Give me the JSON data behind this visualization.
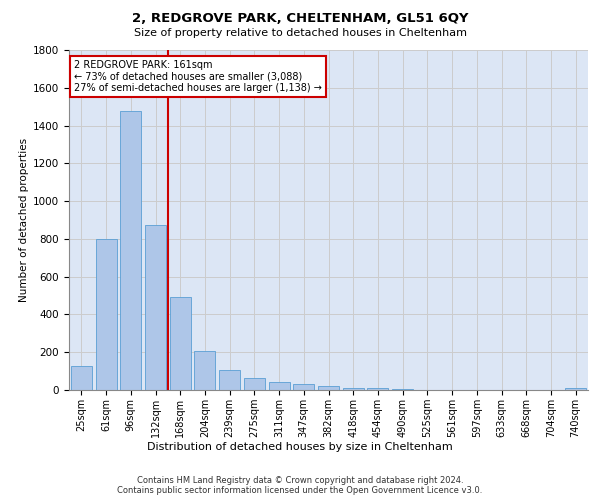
{
  "title": "2, REDGROVE PARK, CHELTENHAM, GL51 6QY",
  "subtitle": "Size of property relative to detached houses in Cheltenham",
  "xlabel": "Distribution of detached houses by size in Cheltenham",
  "ylabel": "Number of detached properties",
  "categories": [
    "25sqm",
    "61sqm",
    "96sqm",
    "132sqm",
    "168sqm",
    "204sqm",
    "239sqm",
    "275sqm",
    "311sqm",
    "347sqm",
    "382sqm",
    "418sqm",
    "454sqm",
    "490sqm",
    "525sqm",
    "561sqm",
    "597sqm",
    "633sqm",
    "668sqm",
    "704sqm",
    "740sqm"
  ],
  "values": [
    125,
    800,
    1475,
    875,
    490,
    205,
    105,
    65,
    42,
    32,
    22,
    10,
    10,
    5,
    2,
    2,
    2,
    2,
    2,
    2,
    10
  ],
  "bar_color": "#aec6e8",
  "bar_edge_color": "#5a9fd4",
  "redline_x": 3.5,
  "annotation_title": "2 REDGROVE PARK: 161sqm",
  "annotation_line1": "← 73% of detached houses are smaller (3,088)",
  "annotation_line2": "27% of semi-detached houses are larger (1,138) →",
  "annotation_box_color": "#cc0000",
  "footer_line1": "Contains HM Land Registry data © Crown copyright and database right 2024.",
  "footer_line2": "Contains public sector information licensed under the Open Government Licence v3.0.",
  "ylim": [
    0,
    1800
  ],
  "grid_color": "#cccccc",
  "bg_color": "#dce6f5"
}
